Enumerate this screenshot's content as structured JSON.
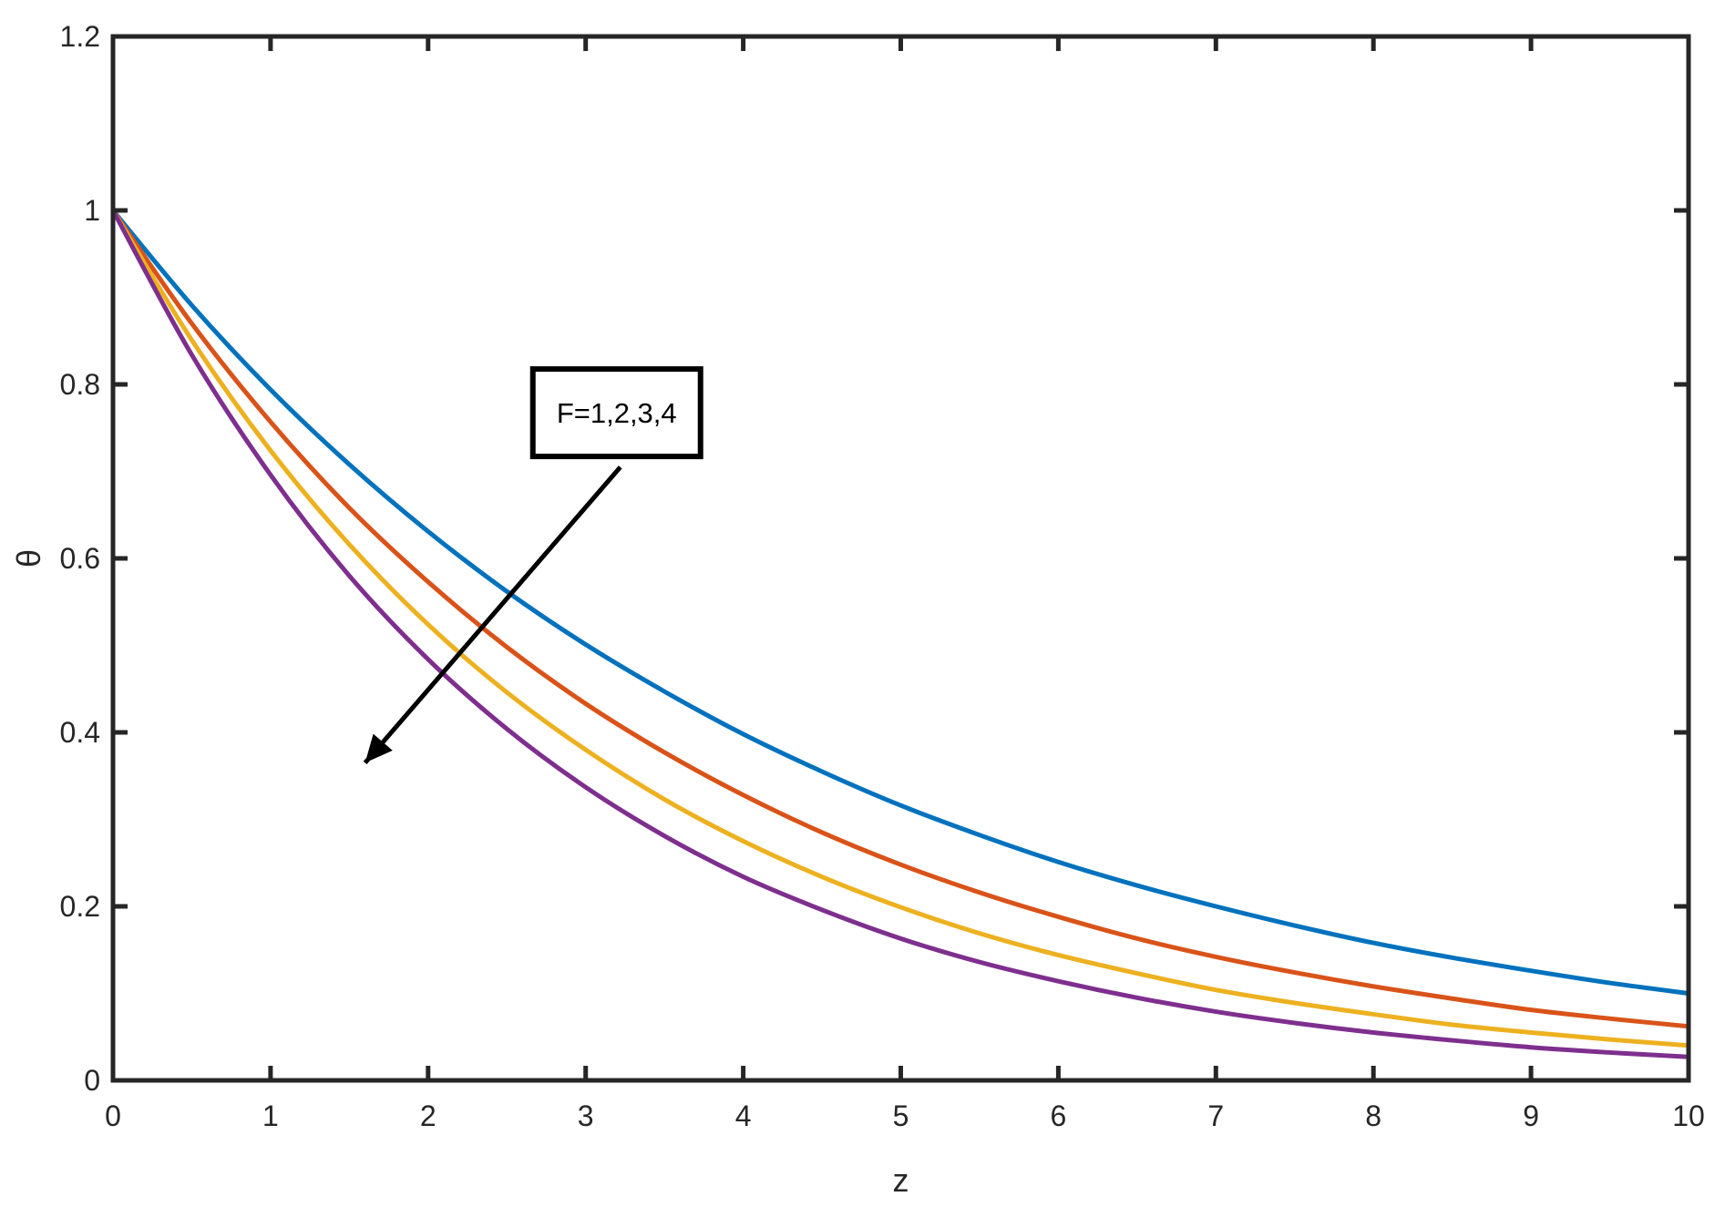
{
  "chart_data": {
    "type": "line",
    "title": "",
    "xlabel": "z",
    "ylabel": "θ",
    "xlim": [
      0,
      10
    ],
    "ylim": [
      0,
      1.2
    ],
    "xticks": [
      0,
      1,
      2,
      3,
      4,
      5,
      6,
      7,
      8,
      9,
      10
    ],
    "xtick_labels": [
      "0",
      "1",
      "2",
      "3",
      "4",
      "5",
      "6",
      "7",
      "8",
      "9",
      "10"
    ],
    "yticks": [
      0,
      0.2,
      0.4,
      0.6,
      0.8,
      1.0,
      1.2
    ],
    "ytick_labels": [
      "0",
      "0.2",
      "0.4",
      "0.6",
      "0.8",
      "1",
      "1.2"
    ],
    "grid": false,
    "x": [
      0,
      0.5,
      1,
      1.5,
      2,
      2.5,
      3,
      3.5,
      4,
      4.5,
      5,
      5.5,
      6,
      6.5,
      7,
      7.5,
      8,
      8.5,
      9,
      9.5,
      10
    ],
    "series": [
      {
        "color": "#0072BD",
        "values": [
          1.0,
          0.891,
          0.794,
          0.708,
          0.631,
          0.562,
          0.501,
          0.447,
          0.398,
          0.355,
          0.316,
          0.282,
          0.251,
          0.224,
          0.2,
          0.178,
          0.158,
          0.141,
          0.126,
          0.112,
          0.1
        ]
      },
      {
        "color": "#D95319",
        "values": [
          1.0,
          0.87,
          0.757,
          0.658,
          0.573,
          0.498,
          0.433,
          0.377,
          0.328,
          0.285,
          0.248,
          0.216,
          0.188,
          0.163,
          0.142,
          0.124,
          0.108,
          0.094,
          0.081,
          0.071,
          0.062
        ]
      },
      {
        "color": "#EDB120",
        "values": [
          1.0,
          0.851,
          0.724,
          0.616,
          0.524,
          0.446,
          0.38,
          0.323,
          0.275,
          0.234,
          0.199,
          0.169,
          0.144,
          0.123,
          0.104,
          0.089,
          0.076,
          0.064,
          0.055,
          0.047,
          0.04
        ]
      },
      {
        "color": "#7E2F8E",
        "values": [
          1.0,
          0.834,
          0.696,
          0.58,
          0.484,
          0.404,
          0.337,
          0.281,
          0.234,
          0.196,
          0.163,
          0.136,
          0.114,
          0.095,
          0.079,
          0.066,
          0.055,
          0.046,
          0.038,
          0.032,
          0.027
        ]
      }
    ],
    "annotation": {
      "text": "F=1,2,3,4",
      "arrow_from": [
        3.22,
        0.705
      ],
      "arrow_to": [
        1.6,
        0.365
      ],
      "box_anchor": [
        3.22,
        0.78
      ]
    }
  }
}
